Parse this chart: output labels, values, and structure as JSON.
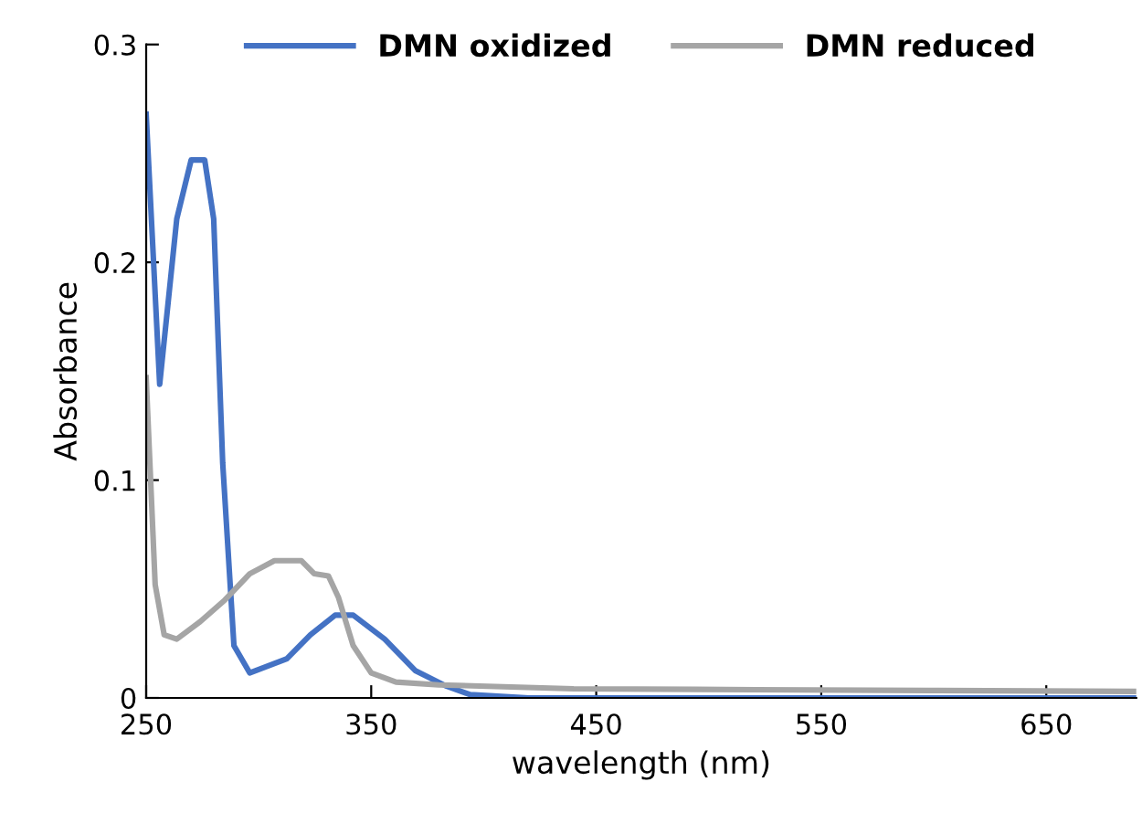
{
  "chart_data": {
    "type": "line",
    "xlabel": "wavelength (nm)",
    "ylabel": "Absorbance",
    "xlim": [
      250,
      690
    ],
    "xticks": [
      250,
      350,
      450,
      550,
      650
    ],
    "ylim": [
      0,
      0.3
    ],
    "yticks": [
      0,
      0.1,
      0.2,
      0.3
    ],
    "grid": false,
    "legend": "top",
    "marker": "none",
    "line_style": "solid",
    "series": [
      {
        "name": "DMN oxidized",
        "color": "#4472c4",
        "x": [
          250,
          256,
          263.6,
          270,
          276,
          280,
          284,
          289,
          296,
          312.5,
          323,
          334,
          342,
          356,
          369.5,
          383,
          394,
          420,
          500,
          600,
          690
        ],
        "values": [
          0.268,
          0.144,
          0.22,
          0.247,
          0.247,
          0.22,
          0.108,
          0.024,
          0.0115,
          0.018,
          0.029,
          0.038,
          0.038,
          0.027,
          0.0126,
          0.0056,
          0.0015,
          0,
          0,
          0,
          0
        ]
      },
      {
        "name": "DMN reduced",
        "color": "#a5a5a5",
        "x": [
          250,
          254,
          258,
          263.6,
          274,
          285,
          296,
          307,
          319,
          324.7,
          331,
          335.5,
          342,
          350,
          361,
          380,
          440,
          521,
          602,
          690
        ],
        "values": [
          0.147,
          0.052,
          0.029,
          0.027,
          0.035,
          0.045,
          0.057,
          0.063,
          0.063,
          0.057,
          0.056,
          0.046,
          0.024,
          0.0115,
          0.0073,
          0.006,
          0.0042,
          0.0038,
          0.0034,
          0.003
        ]
      }
    ]
  }
}
